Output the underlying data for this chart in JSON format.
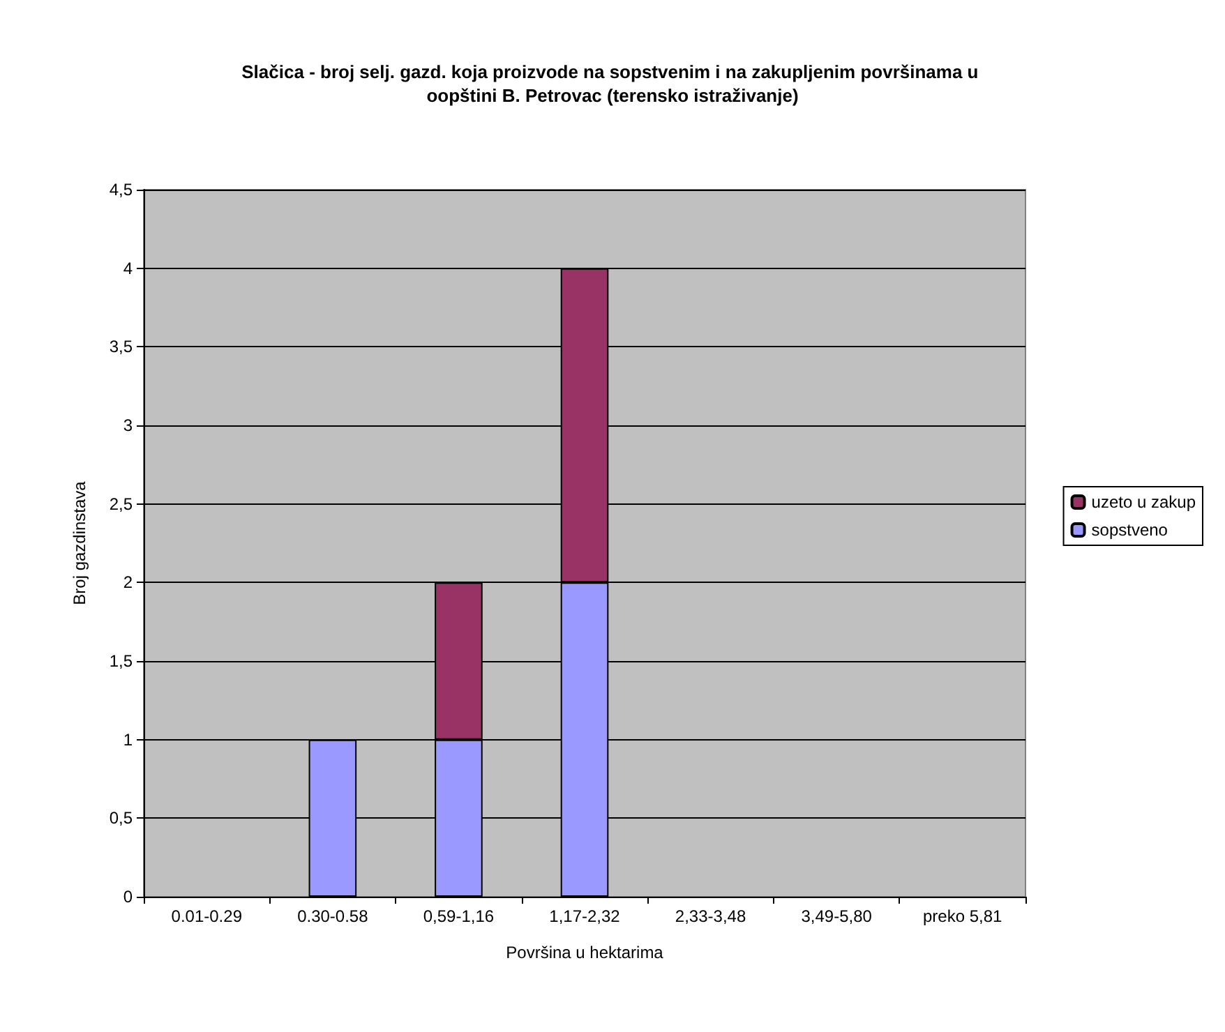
{
  "chart_data": {
    "type": "bar",
    "title": "Slačica - broj selj. gazd. koja proizvode na sopstvenim i na zakupljenim površinama u oopštini B. Petrovac (terensko istraživanje)",
    "xlabel": "Površina u hektarima",
    "ylabel": "Broj gazdinstava",
    "categories": [
      "0.01-0.29",
      "0.30-0.58",
      "0,59-1,16",
      "1,17-2,32",
      "2,33-3,48",
      "3,49-5,80",
      "preko 5,81"
    ],
    "stacked": true,
    "series": [
      {
        "name": "sopstveno",
        "color": "#9999ff",
        "values": [
          0,
          1,
          1,
          2,
          0,
          0,
          0
        ]
      },
      {
        "name": "uzeto u zakup",
        "color": "#993366",
        "values": [
          0,
          0,
          1,
          2,
          0,
          0,
          0
        ]
      }
    ],
    "ylim": [
      0,
      4.5
    ],
    "yticks": [
      0,
      {
        "value": 0.5,
        "label": "0,5"
      },
      1,
      {
        "value": 1.5,
        "label": "1,5"
      },
      2,
      {
        "value": 2.5,
        "label": "2,5"
      },
      3,
      {
        "value": 3.5,
        "label": "3,5"
      },
      4,
      {
        "value": 4.5,
        "label": "4,5"
      }
    ],
    "grid": "y",
    "legend": "right"
  }
}
